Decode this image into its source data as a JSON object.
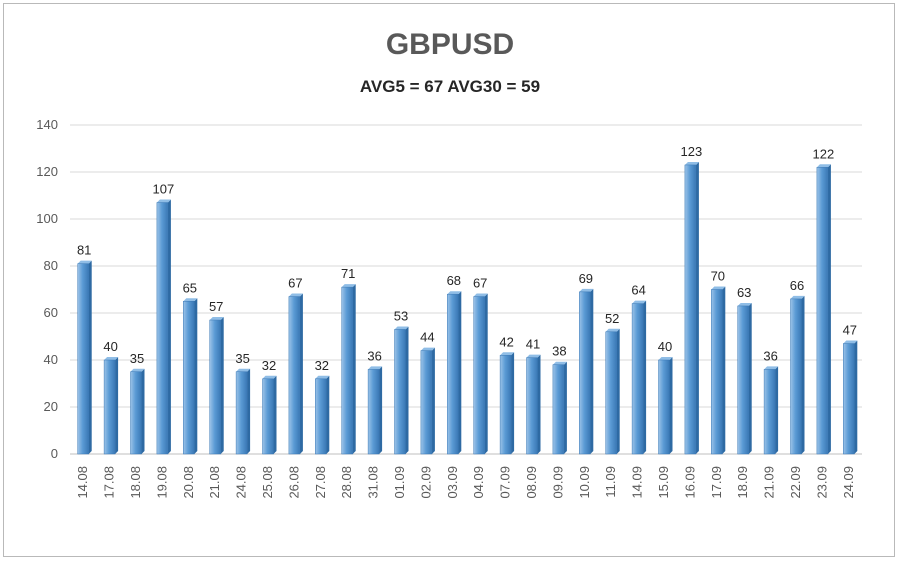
{
  "chart_data": {
    "type": "bar",
    "title": "GBPUSD",
    "subtitle": "AVG5 = 67 AVG30 = 59",
    "xlabel": "",
    "ylabel": "",
    "ylim": [
      0,
      140
    ],
    "yticks": [
      0,
      20,
      40,
      60,
      80,
      100,
      120,
      140
    ],
    "grid": true,
    "legend": "none",
    "bar_color": "#5b9bd5",
    "categories": [
      "14.08",
      "17.08",
      "18.08",
      "19.08",
      "20.08",
      "21.08",
      "24.08",
      "25.08",
      "26.08",
      "27.08",
      "28.08",
      "31.08",
      "01.09",
      "02.09",
      "03.09",
      "04.09",
      "07.09",
      "08.09",
      "09.09",
      "10.09",
      "11.09",
      "14.09",
      "15.09",
      "16.09",
      "17.09",
      "18.09",
      "21.09",
      "22.09",
      "23.09",
      "24.09"
    ],
    "values": [
      81,
      40,
      35,
      107,
      65,
      57,
      35,
      32,
      67,
      32,
      71,
      36,
      53,
      44,
      68,
      67,
      42,
      41,
      38,
      69,
      52,
      64,
      40,
      123,
      70,
      63,
      36,
      66,
      122,
      47
    ]
  }
}
